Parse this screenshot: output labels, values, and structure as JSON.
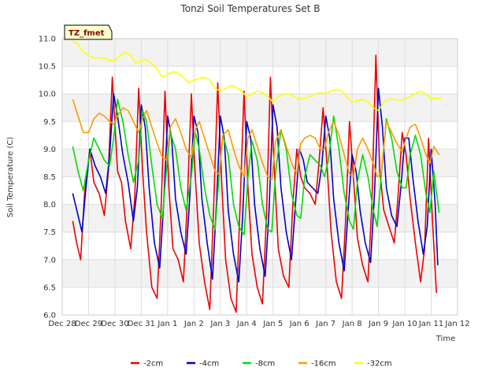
{
  "chart_data": {
    "type": "line",
    "title": "Tonzi Soil Temperatures Set B",
    "xlabel": "Time",
    "ylabel": "Soil Temperature (C)",
    "ylim": [
      6.0,
      11.0
    ],
    "xlim": [
      0,
      15
    ],
    "yticks": [
      6.0,
      6.5,
      7.0,
      7.5,
      8.0,
      8.5,
      9.0,
      9.5,
      10.0,
      10.5,
      11.0
    ],
    "xticks": [
      "Dec 28",
      "Dec 29",
      "Dec 30",
      "Dec 31",
      "Jan 1",
      "Jan 2",
      "Jan 3",
      "Jan 4",
      "Jan 5",
      "Jan 6",
      "Jan 7",
      "Jan 8",
      "Jan 9",
      "Jan 10",
      "Jan 11",
      "Jan 12"
    ],
    "grid": true,
    "legend_position": "bottom",
    "badge": "TZ_fmet",
    "series": [
      {
        "name": "-2cm",
        "color": "#ee0000",
        "x": [
          0.4,
          0.55,
          0.7,
          0.85,
          1.05,
          1.2,
          1.4,
          1.6,
          1.75,
          1.9,
          2.1,
          2.25,
          2.4,
          2.6,
          2.75,
          2.9,
          3.05,
          3.2,
          3.4,
          3.6,
          3.75,
          3.9,
          4.05,
          4.2,
          4.4,
          4.6,
          4.75,
          4.9,
          5.05,
          5.2,
          5.4,
          5.6,
          5.75,
          5.9,
          6.05,
          6.2,
          6.4,
          6.6,
          6.75,
          6.9,
          7.05,
          7.2,
          7.4,
          7.6,
          7.75,
          7.9,
          8.05,
          8.2,
          8.4,
          8.6,
          8.75,
          8.9,
          9.05,
          9.2,
          9.4,
          9.6,
          9.75,
          9.9,
          10.05,
          10.2,
          10.4,
          10.6,
          10.75,
          10.9,
          11.05,
          11.2,
          11.4,
          11.6,
          11.75,
          11.9,
          12.05,
          12.2,
          12.4,
          12.6,
          12.75,
          12.9,
          13.05,
          13.2,
          13.4,
          13.6,
          13.75,
          13.9,
          14.05,
          14.2
        ],
        "values": [
          7.7,
          7.3,
          7.0,
          8.2,
          9.0,
          8.4,
          8.2,
          7.8,
          8.6,
          10.3,
          8.6,
          8.4,
          7.7,
          7.2,
          8.1,
          10.1,
          8.6,
          7.5,
          6.5,
          6.3,
          7.9,
          10.05,
          8.3,
          7.2,
          7.0,
          6.6,
          8.1,
          10.0,
          8.5,
          7.3,
          6.6,
          6.1,
          8.0,
          10.2,
          8.4,
          7.0,
          6.3,
          6.05,
          8.0,
          10.05,
          8.3,
          7.1,
          6.5,
          6.2,
          7.8,
          10.3,
          8.6,
          7.2,
          6.7,
          6.5,
          8.0,
          9.0,
          8.5,
          8.3,
          8.2,
          8.0,
          8.8,
          9.75,
          8.7,
          7.5,
          6.6,
          6.3,
          7.7,
          9.5,
          8.5,
          7.4,
          6.9,
          6.6,
          8.0,
          10.7,
          8.6,
          7.9,
          7.6,
          7.3,
          8.2,
          9.3,
          8.9,
          8.1,
          7.3,
          6.6,
          7.2,
          9.2,
          7.7,
          6.4
        ]
      },
      {
        "name": "-4cm",
        "color": "#0000cc",
        "x": [
          0.4,
          0.6,
          0.75,
          0.9,
          1.05,
          1.25,
          1.45,
          1.65,
          1.8,
          1.95,
          2.1,
          2.3,
          2.5,
          2.7,
          2.85,
          3.0,
          3.15,
          3.3,
          3.5,
          3.7,
          3.85,
          4.0,
          4.15,
          4.3,
          4.5,
          4.7,
          4.85,
          5.0,
          5.15,
          5.3,
          5.5,
          5.7,
          5.85,
          6.0,
          6.15,
          6.3,
          6.5,
          6.7,
          6.85,
          7.0,
          7.15,
          7.3,
          7.5,
          7.7,
          7.85,
          8.0,
          8.15,
          8.3,
          8.5,
          8.7,
          8.85,
          9.0,
          9.15,
          9.3,
          9.5,
          9.7,
          9.85,
          10.0,
          10.15,
          10.3,
          10.5,
          10.7,
          10.85,
          11.0,
          11.15,
          11.3,
          11.5,
          11.7,
          11.85,
          12.0,
          12.15,
          12.3,
          12.5,
          12.7,
          12.85,
          13.0,
          13.15,
          13.3,
          13.5,
          13.7,
          13.85,
          14.0,
          14.15,
          14.25
        ],
        "values": [
          8.2,
          7.8,
          7.5,
          8.3,
          9.0,
          8.7,
          8.5,
          8.2,
          8.9,
          10.0,
          9.6,
          8.9,
          8.4,
          7.7,
          8.3,
          9.8,
          9.4,
          8.3,
          7.3,
          6.85,
          8.0,
          9.6,
          9.2,
          8.1,
          7.5,
          7.1,
          8.2,
          9.6,
          9.3,
          8.1,
          7.3,
          6.65,
          8.0,
          9.6,
          9.2,
          7.9,
          7.1,
          6.6,
          7.8,
          9.5,
          9.2,
          8.0,
          7.2,
          6.7,
          7.9,
          9.8,
          9.4,
          8.3,
          7.5,
          7.0,
          8.0,
          9.0,
          8.8,
          8.4,
          8.3,
          8.2,
          8.7,
          9.6,
          9.2,
          8.1,
          7.3,
          6.8,
          7.9,
          8.9,
          8.6,
          7.9,
          7.3,
          6.95,
          8.2,
          10.1,
          9.4,
          8.3,
          7.8,
          7.6,
          8.3,
          9.2,
          9.2,
          8.5,
          7.7,
          7.1,
          7.6,
          9.0,
          8.0,
          6.9
        ]
      },
      {
        "name": "-8cm",
        "color": "#00dd00",
        "x": [
          0.4,
          0.6,
          0.8,
          1.0,
          1.2,
          1.4,
          1.6,
          1.8,
          1.95,
          2.1,
          2.3,
          2.5,
          2.7,
          2.9,
          3.05,
          3.2,
          3.4,
          3.6,
          3.8,
          3.95,
          4.1,
          4.3,
          4.5,
          4.7,
          4.9,
          5.05,
          5.2,
          5.4,
          5.6,
          5.8,
          5.95,
          6.1,
          6.3,
          6.5,
          6.7,
          6.9,
          7.05,
          7.2,
          7.4,
          7.6,
          7.8,
          7.95,
          8.1,
          8.3,
          8.5,
          8.7,
          8.9,
          9.05,
          9.2,
          9.4,
          9.6,
          9.8,
          9.95,
          10.1,
          10.3,
          10.5,
          10.7,
          10.9,
          11.05,
          11.2,
          11.4,
          11.6,
          11.8,
          11.95,
          12.1,
          12.3,
          12.5,
          12.7,
          12.9,
          13.05,
          13.2,
          13.4,
          13.6,
          13.8,
          13.95,
          14.1,
          14.3
        ],
        "values": [
          9.05,
          8.6,
          8.25,
          8.8,
          9.2,
          9.0,
          8.8,
          8.7,
          9.2,
          9.9,
          9.5,
          8.9,
          8.4,
          8.8,
          9.7,
          9.5,
          8.7,
          8.0,
          7.75,
          8.6,
          9.3,
          9.0,
          8.3,
          7.9,
          8.5,
          9.3,
          9.0,
          8.3,
          7.8,
          7.55,
          8.5,
          9.25,
          8.9,
          8.0,
          7.6,
          7.45,
          8.5,
          9.15,
          8.8,
          8.0,
          7.55,
          7.5,
          8.6,
          9.35,
          9.0,
          8.2,
          7.8,
          7.75,
          8.5,
          8.9,
          8.8,
          8.7,
          8.5,
          8.8,
          9.6,
          9.0,
          8.2,
          7.7,
          7.55,
          8.4,
          8.9,
          8.5,
          7.9,
          7.6,
          8.5,
          9.55,
          9.2,
          8.6,
          8.3,
          8.3,
          8.9,
          9.25,
          8.9,
          8.2,
          7.85,
          8.6,
          7.85
        ]
      },
      {
        "name": "-16cm",
        "color": "#ff9900",
        "x": [
          0.4,
          0.6,
          0.8,
          1.0,
          1.2,
          1.4,
          1.6,
          1.8,
          1.95,
          2.1,
          2.3,
          2.5,
          2.7,
          2.9,
          3.05,
          3.2,
          3.4,
          3.6,
          3.8,
          3.95,
          4.1,
          4.3,
          4.5,
          4.7,
          4.9,
          5.05,
          5.2,
          5.4,
          5.6,
          5.8,
          5.95,
          6.1,
          6.3,
          6.5,
          6.7,
          6.9,
          7.05,
          7.2,
          7.4,
          7.6,
          7.8,
          7.95,
          8.1,
          8.3,
          8.5,
          8.7,
          8.9,
          9.05,
          9.2,
          9.4,
          9.6,
          9.8,
          9.95,
          10.1,
          10.3,
          10.5,
          10.7,
          10.9,
          11.05,
          11.2,
          11.4,
          11.6,
          11.8,
          11.95,
          12.1,
          12.3,
          12.5,
          12.7,
          12.9,
          13.05,
          13.2,
          13.4,
          13.6,
          13.8,
          13.95,
          14.1,
          14.3
        ],
        "values": [
          9.9,
          9.6,
          9.3,
          9.3,
          9.55,
          9.65,
          9.6,
          9.5,
          9.45,
          9.6,
          9.75,
          9.7,
          9.5,
          9.3,
          9.55,
          9.7,
          9.4,
          9.1,
          8.85,
          8.8,
          9.4,
          9.55,
          9.3,
          9.0,
          8.85,
          9.35,
          9.5,
          9.2,
          8.9,
          8.6,
          8.55,
          9.25,
          9.35,
          9.0,
          8.7,
          8.5,
          9.2,
          9.35,
          9.05,
          8.75,
          8.5,
          8.45,
          9.15,
          9.35,
          9.05,
          8.75,
          8.55,
          9.1,
          9.2,
          9.25,
          9.2,
          9.0,
          9.0,
          9.3,
          9.5,
          9.25,
          8.9,
          8.55,
          8.5,
          9.0,
          9.2,
          9.0,
          8.75,
          8.5,
          8.55,
          9.5,
          9.3,
          9.1,
          8.95,
          9.2,
          9.4,
          9.45,
          9.2,
          8.9,
          8.75,
          9.05,
          8.9
        ]
      },
      {
        "name": "-32cm",
        "color": "#ffff00",
        "x": [
          0.4,
          0.6,
          0.8,
          1.0,
          1.2,
          1.4,
          1.6,
          1.8,
          2.0,
          2.2,
          2.4,
          2.6,
          2.8,
          3.0,
          3.2,
          3.4,
          3.6,
          3.8,
          4.0,
          4.2,
          4.4,
          4.6,
          4.8,
          5.0,
          5.2,
          5.4,
          5.6,
          5.8,
          6.0,
          6.2,
          6.4,
          6.6,
          6.8,
          7.0,
          7.2,
          7.4,
          7.6,
          7.8,
          8.0,
          8.2,
          8.4,
          8.6,
          8.8,
          9.0,
          9.2,
          9.4,
          9.6,
          9.8,
          10.0,
          10.2,
          10.4,
          10.6,
          10.8,
          11.0,
          11.2,
          11.4,
          11.6,
          11.8,
          12.0,
          12.2,
          12.4,
          12.6,
          12.8,
          13.0,
          13.2,
          13.4,
          13.6,
          13.8,
          14.0,
          14.2,
          14.4
        ],
        "values": [
          10.95,
          10.9,
          10.75,
          10.7,
          10.65,
          10.65,
          10.65,
          10.6,
          10.6,
          10.7,
          10.75,
          10.7,
          10.55,
          10.6,
          10.62,
          10.55,
          10.45,
          10.3,
          10.35,
          10.4,
          10.38,
          10.3,
          10.2,
          10.25,
          10.28,
          10.3,
          10.25,
          10.1,
          10.05,
          10.1,
          10.15,
          10.12,
          10.05,
          9.95,
          10.0,
          10.05,
          10.02,
          9.95,
          9.85,
          9.95,
          10.0,
          10.0,
          9.95,
          9.9,
          9.92,
          9.95,
          10.0,
          10.02,
          10.0,
          10.05,
          10.08,
          10.05,
          9.95,
          9.85,
          9.88,
          9.9,
          9.85,
          9.75,
          9.7,
          9.85,
          9.9,
          9.9,
          9.88,
          9.9,
          9.95,
          10.0,
          10.05,
          10.0,
          9.9,
          9.92,
          9.92
        ]
      }
    ]
  }
}
